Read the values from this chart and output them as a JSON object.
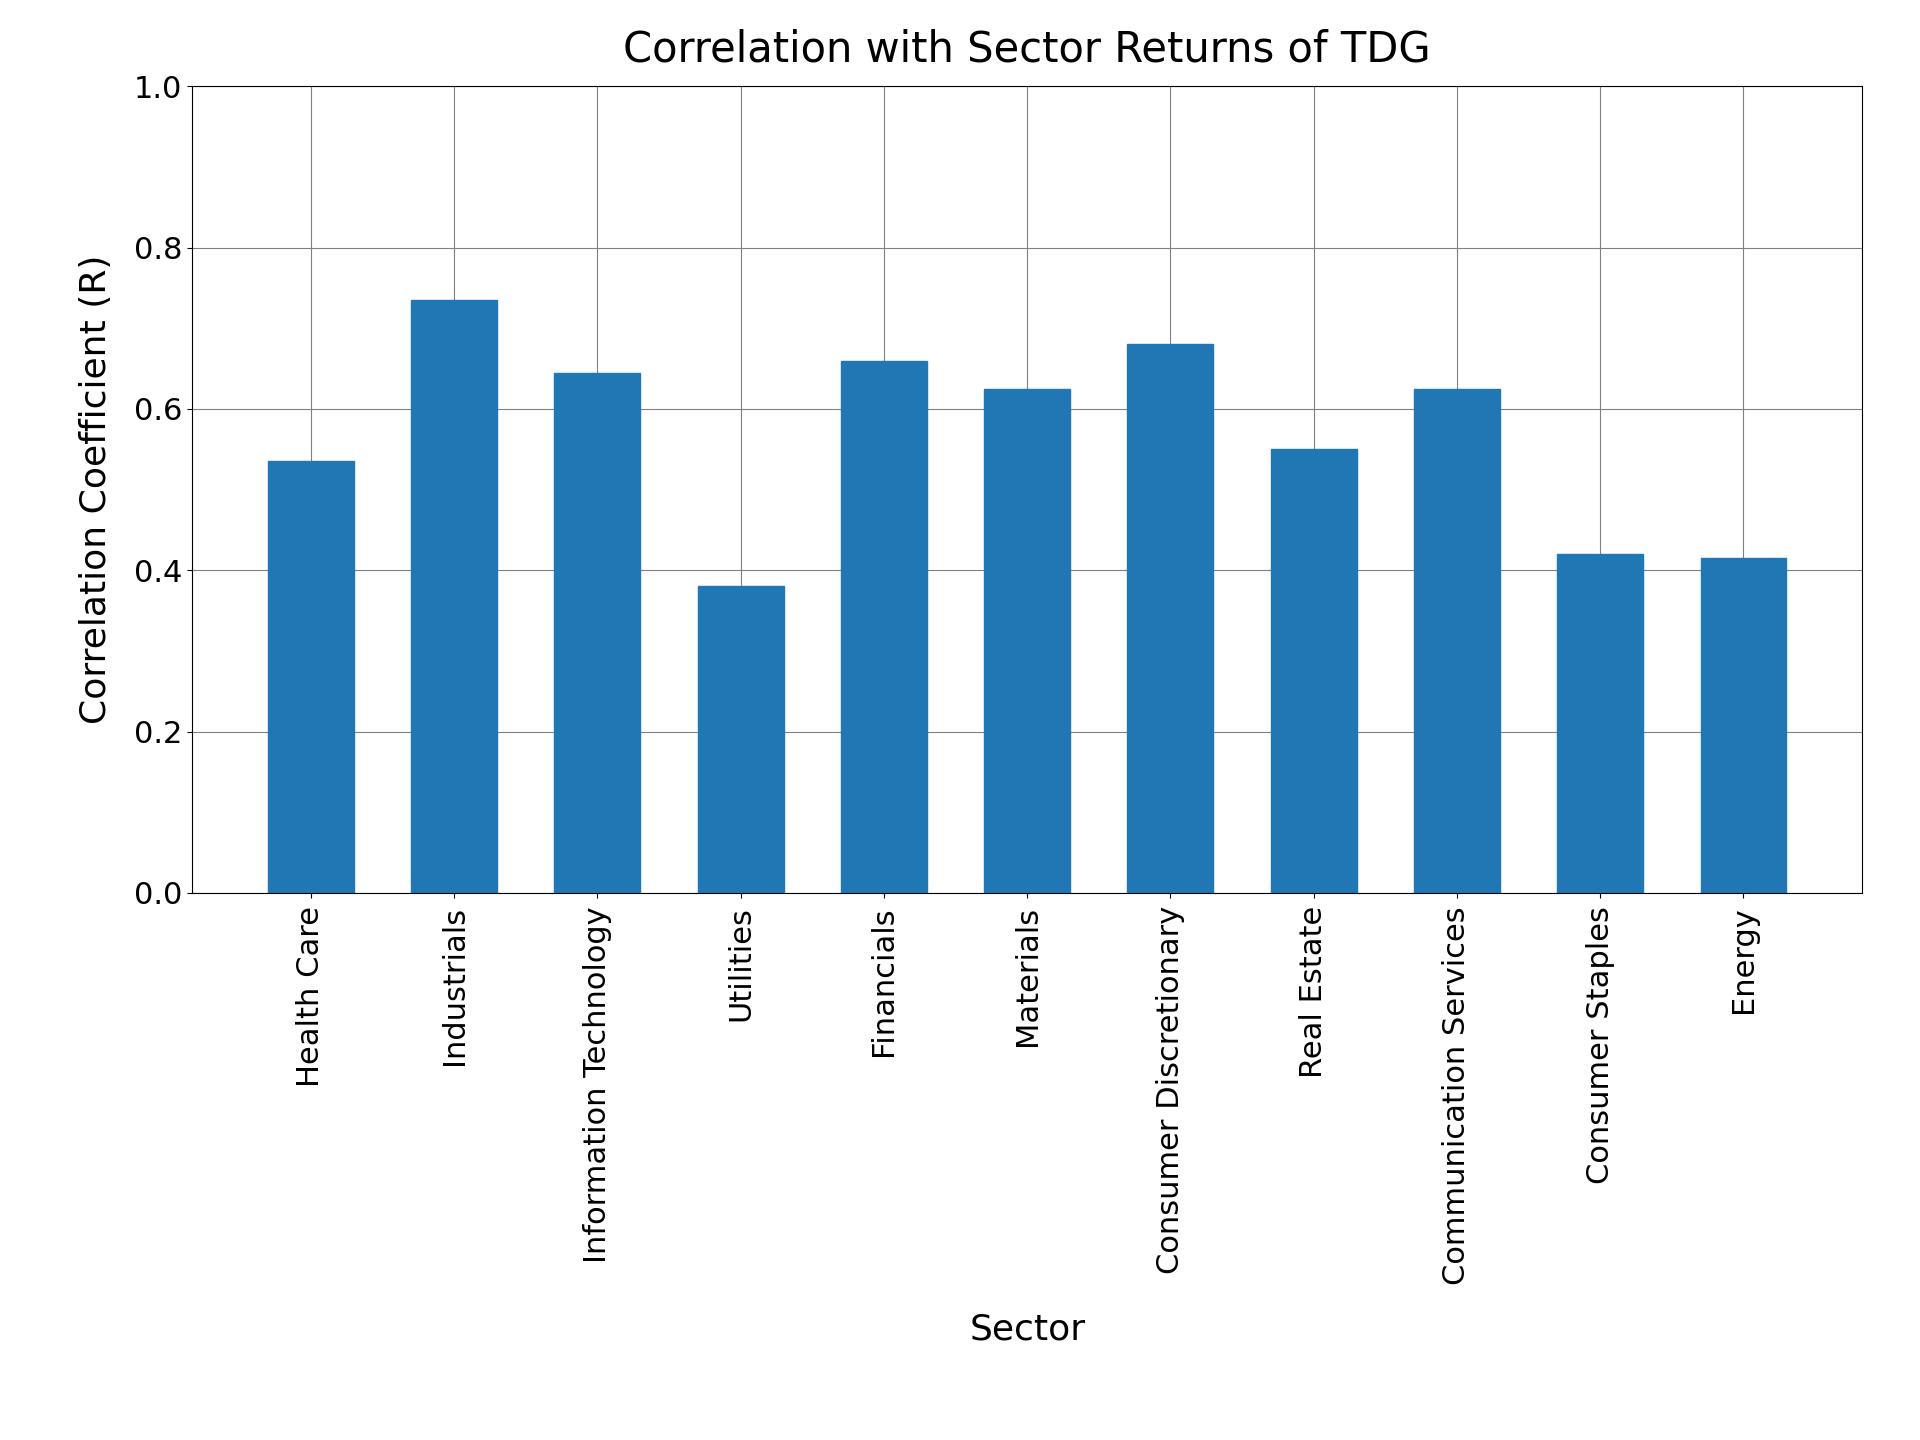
{
  "title": "Correlation with Sector Returns of TDG",
  "xlabel": "Sector",
  "ylabel": "Correlation Coefficient (R)",
  "categories": [
    "Health Care",
    "Industrials",
    "Information Technology",
    "Utilities",
    "Financials",
    "Materials",
    "Consumer Discretionary",
    "Real Estate",
    "Communication Services",
    "Consumer Staples",
    "Energy"
  ],
  "values": [
    0.535,
    0.735,
    0.645,
    0.38,
    0.66,
    0.625,
    0.68,
    0.55,
    0.625,
    0.42,
    0.415
  ],
  "bar_color": "#2077b4",
  "ylim": [
    0.0,
    1.0
  ],
  "yticks": [
    0.0,
    0.2,
    0.4,
    0.6,
    0.8,
    1.0
  ],
  "title_fontsize": 30,
  "axis_label_fontsize": 26,
  "tick_fontsize": 22,
  "xtick_fontsize": 22,
  "background_color": "#ffffff",
  "grid": true,
  "bar_width": 0.6
}
